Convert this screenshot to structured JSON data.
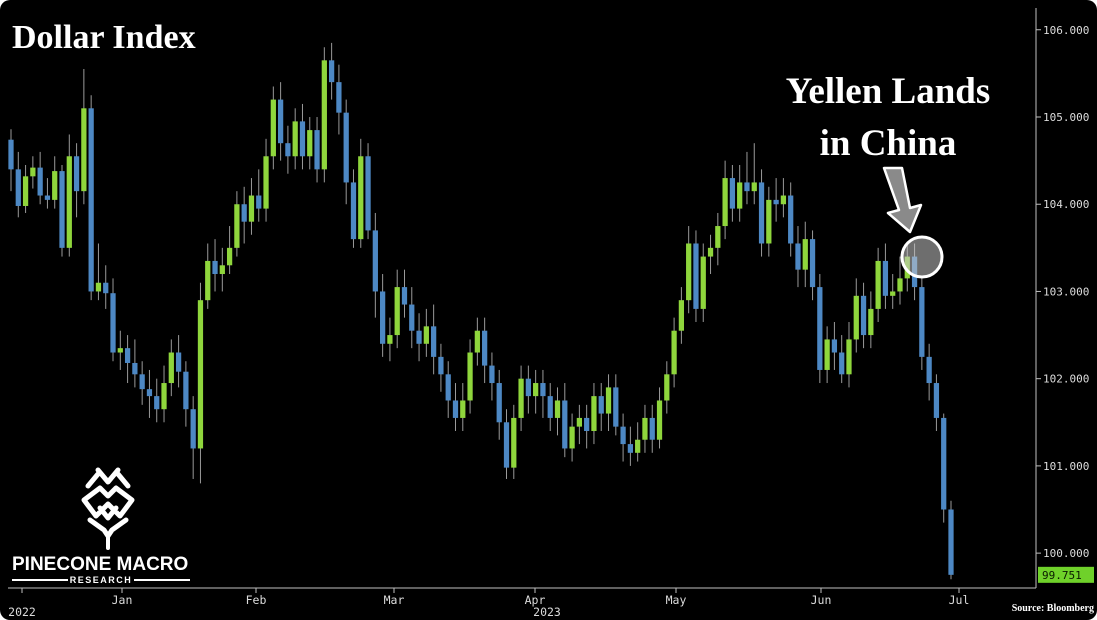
{
  "chart_data": {
    "type": "candlestick",
    "title": "Dollar Index",
    "annotation": "Yellen Lands in China",
    "annotation_lines": [
      "Yellen Lands",
      "in China"
    ],
    "source": "Source: Bloomberg",
    "brand": {
      "name": "PINECONE MACRO",
      "sub": "RESEARCH"
    },
    "colors": {
      "up": "#8fd63c",
      "down": "#4d88c4",
      "background": "#000000",
      "last_value_bg": "#6fd12a"
    },
    "ylim": [
      99.6,
      106.25
    ],
    "yticks": [
      "106.000",
      "105.000",
      "104.000",
      "103.000",
      "102.000",
      "101.000",
      "100.000"
    ],
    "last_value": "99.751",
    "xticks": [
      "2022",
      "Jan",
      "Feb",
      "Mar",
      "Apr",
      "May",
      "Jun",
      "Jul"
    ],
    "x_year_label": "2023",
    "series": [
      {
        "values": [
          [
            104.74,
            104.4,
            104.86,
            104.15
          ],
          [
            104.4,
            103.98,
            104.6,
            103.85
          ],
          [
            103.98,
            104.32,
            104.45,
            103.9
          ],
          [
            104.32,
            104.42,
            104.55,
            104.18
          ],
          [
            104.42,
            104.1,
            104.6,
            104.0
          ],
          [
            104.1,
            104.05,
            104.3,
            103.95
          ],
          [
            104.05,
            104.38,
            104.55,
            103.95
          ],
          [
            104.38,
            103.5,
            104.45,
            103.4
          ],
          [
            103.5,
            104.55,
            104.8,
            103.4
          ],
          [
            104.55,
            104.15,
            104.7,
            103.85
          ],
          [
            104.15,
            105.1,
            105.55,
            104.0
          ],
          [
            105.1,
            103.0,
            105.25,
            102.9
          ],
          [
            103.0,
            103.1,
            103.55,
            102.9
          ],
          [
            103.1,
            102.98,
            103.3,
            102.8
          ],
          [
            102.98,
            102.3,
            103.15,
            102.2
          ],
          [
            102.3,
            102.35,
            102.55,
            102.1
          ],
          [
            102.35,
            102.18,
            102.5,
            101.95
          ],
          [
            102.18,
            102.05,
            102.45,
            101.9
          ],
          [
            102.05,
            101.88,
            102.2,
            101.7
          ],
          [
            101.88,
            101.8,
            102.1,
            101.55
          ],
          [
            101.8,
            101.65,
            102.0,
            101.5
          ],
          [
            101.65,
            101.95,
            102.15,
            101.5
          ],
          [
            101.95,
            102.3,
            102.45,
            101.8
          ],
          [
            102.3,
            102.08,
            102.5,
            101.9
          ],
          [
            102.08,
            101.65,
            102.2,
            101.45
          ],
          [
            101.65,
            101.2,
            101.8,
            100.85
          ],
          [
            101.2,
            102.9,
            103.1,
            100.8
          ],
          [
            102.9,
            103.35,
            103.55,
            102.8
          ],
          [
            103.35,
            103.2,
            103.6,
            103.0
          ],
          [
            103.2,
            103.3,
            103.5,
            103.0
          ],
          [
            103.3,
            103.5,
            103.75,
            103.2
          ],
          [
            103.5,
            104.0,
            104.15,
            103.4
          ],
          [
            104.0,
            103.8,
            104.2,
            103.55
          ],
          [
            103.8,
            104.1,
            104.3,
            103.65
          ],
          [
            104.1,
            103.95,
            104.4,
            103.8
          ],
          [
            103.95,
            104.55,
            104.75,
            103.8
          ],
          [
            104.55,
            105.2,
            105.35,
            104.4
          ],
          [
            105.2,
            104.7,
            105.4,
            104.5
          ],
          [
            104.7,
            104.55,
            104.9,
            104.35
          ],
          [
            104.55,
            104.95,
            105.1,
            104.4
          ],
          [
            104.95,
            104.55,
            105.15,
            104.4
          ],
          [
            104.55,
            104.85,
            105.0,
            104.4
          ],
          [
            104.85,
            104.4,
            105.0,
            104.25
          ],
          [
            104.4,
            105.65,
            105.8,
            104.25
          ],
          [
            105.65,
            105.4,
            105.85,
            105.2
          ],
          [
            105.4,
            105.05,
            105.6,
            104.8
          ],
          [
            105.05,
            104.25,
            105.2,
            104.0
          ],
          [
            104.25,
            103.6,
            104.4,
            103.5
          ],
          [
            103.6,
            104.55,
            104.75,
            103.5
          ],
          [
            104.55,
            103.7,
            104.7,
            103.6
          ],
          [
            103.7,
            103.0,
            103.9,
            102.7
          ],
          [
            103.0,
            102.4,
            103.2,
            102.25
          ],
          [
            102.4,
            102.5,
            102.7,
            102.2
          ],
          [
            102.5,
            103.05,
            103.25,
            102.35
          ],
          [
            103.05,
            102.85,
            103.25,
            102.7
          ],
          [
            102.85,
            102.55,
            103.05,
            102.35
          ],
          [
            102.55,
            102.4,
            102.75,
            102.2
          ],
          [
            102.4,
            102.6,
            102.8,
            102.25
          ],
          [
            102.6,
            102.25,
            102.85,
            102.05
          ],
          [
            102.25,
            102.05,
            102.4,
            101.85
          ],
          [
            102.05,
            101.75,
            102.2,
            101.55
          ],
          [
            101.75,
            101.55,
            101.95,
            101.4
          ],
          [
            101.55,
            101.75,
            101.95,
            101.4
          ],
          [
            101.75,
            102.3,
            102.45,
            101.6
          ],
          [
            102.3,
            102.55,
            102.7,
            102.15
          ],
          [
            102.55,
            102.15,
            102.7,
            101.95
          ],
          [
            102.15,
            101.95,
            102.3,
            101.75
          ],
          [
            101.95,
            101.5,
            102.1,
            101.3
          ],
          [
            101.5,
            100.98,
            101.65,
            100.85
          ],
          [
            100.98,
            101.55,
            101.7,
            100.85
          ],
          [
            101.55,
            102.0,
            102.15,
            101.4
          ],
          [
            102.0,
            101.8,
            102.15,
            101.6
          ],
          [
            101.8,
            101.95,
            102.1,
            101.6
          ],
          [
            101.95,
            101.8,
            102.1,
            101.55
          ],
          [
            101.8,
            101.55,
            101.95,
            101.4
          ],
          [
            101.55,
            101.75,
            101.9,
            101.35
          ],
          [
            101.75,
            101.2,
            101.95,
            101.1
          ],
          [
            101.2,
            101.45,
            101.6,
            101.05
          ],
          [
            101.45,
            101.55,
            101.7,
            101.25
          ],
          [
            101.55,
            101.4,
            101.7,
            101.2
          ],
          [
            101.4,
            101.8,
            101.95,
            101.25
          ],
          [
            101.8,
            101.6,
            101.95,
            101.4
          ],
          [
            101.6,
            101.9,
            102.05,
            101.4
          ],
          [
            101.9,
            101.45,
            102.05,
            101.35
          ],
          [
            101.45,
            101.25,
            101.6,
            101.05
          ],
          [
            101.25,
            101.15,
            101.45,
            101.0
          ],
          [
            101.15,
            101.3,
            101.5,
            101.05
          ],
          [
            101.3,
            101.55,
            101.7,
            101.15
          ],
          [
            101.55,
            101.3,
            101.7,
            101.15
          ],
          [
            101.3,
            101.75,
            101.9,
            101.2
          ],
          [
            101.75,
            102.05,
            102.2,
            101.6
          ],
          [
            102.05,
            102.55,
            102.7,
            101.9
          ],
          [
            102.55,
            102.9,
            103.05,
            102.4
          ],
          [
            102.9,
            103.55,
            103.75,
            102.75
          ],
          [
            103.55,
            102.8,
            103.7,
            102.65
          ],
          [
            102.8,
            103.4,
            103.55,
            102.65
          ],
          [
            103.4,
            103.5,
            103.65,
            103.2
          ],
          [
            103.5,
            103.75,
            103.9,
            103.3
          ],
          [
            103.75,
            104.3,
            104.5,
            103.6
          ],
          [
            104.3,
            103.95,
            104.45,
            103.8
          ],
          [
            103.95,
            104.25,
            104.45,
            103.8
          ],
          [
            104.25,
            104.15,
            104.6,
            104.0
          ],
          [
            104.15,
            104.25,
            104.7,
            104.0
          ],
          [
            104.25,
            103.55,
            104.4,
            103.4
          ],
          [
            103.55,
            104.05,
            104.2,
            103.4
          ],
          [
            104.05,
            104.0,
            104.3,
            103.8
          ],
          [
            104.0,
            104.1,
            104.3,
            103.85
          ],
          [
            104.1,
            103.55,
            104.25,
            103.4
          ],
          [
            103.55,
            103.25,
            103.75,
            103.05
          ],
          [
            103.25,
            103.6,
            103.8,
            103.05
          ],
          [
            103.6,
            103.05,
            103.7,
            102.9
          ],
          [
            103.05,
            102.1,
            103.2,
            101.95
          ],
          [
            102.1,
            102.45,
            102.6,
            101.95
          ],
          [
            102.45,
            102.3,
            102.65,
            102.1
          ],
          [
            102.3,
            102.05,
            102.5,
            101.95
          ],
          [
            102.05,
            102.45,
            102.65,
            101.9
          ],
          [
            102.45,
            102.95,
            103.15,
            102.3
          ],
          [
            102.95,
            102.5,
            103.1,
            102.35
          ],
          [
            102.5,
            102.8,
            103.0,
            102.35
          ],
          [
            102.8,
            103.35,
            103.5,
            102.65
          ],
          [
            103.35,
            102.95,
            103.55,
            102.8
          ],
          [
            102.95,
            103.0,
            103.2,
            102.8
          ],
          [
            103.0,
            103.15,
            103.4,
            102.85
          ],
          [
            103.15,
            103.4,
            103.55,
            103.0
          ],
          [
            103.4,
            103.05,
            103.55,
            102.9
          ],
          [
            103.05,
            102.25,
            103.15,
            102.1
          ],
          [
            102.25,
            101.95,
            102.4,
            101.75
          ],
          [
            101.95,
            101.55,
            102.05,
            101.4
          ],
          [
            101.55,
            100.5,
            101.6,
            100.35
          ],
          [
            100.5,
            99.751,
            100.6,
            99.7
          ]
        ]
      }
    ]
  }
}
